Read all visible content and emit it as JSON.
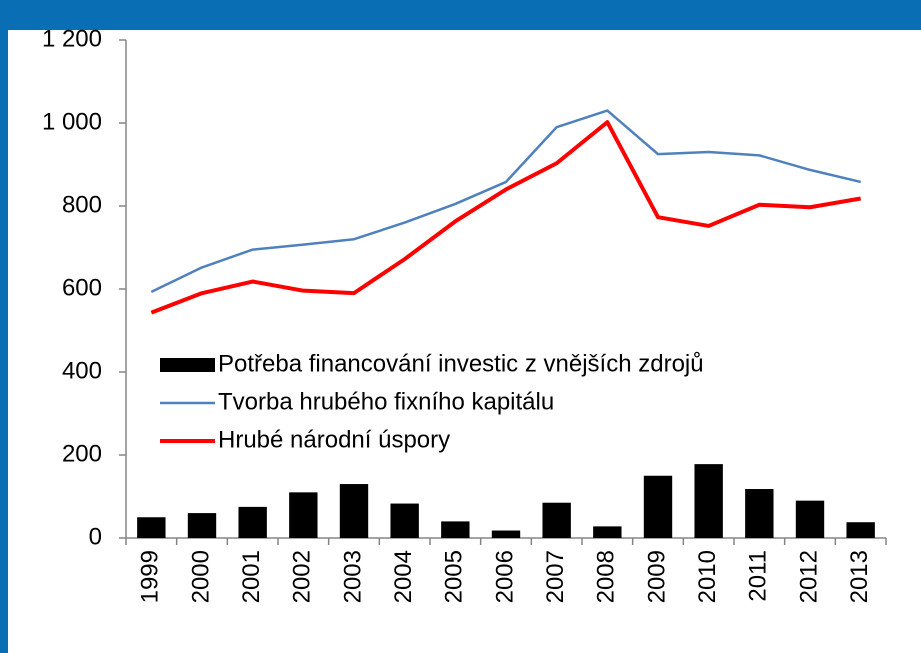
{
  "chart_data": {
    "type": "combo",
    "categories": [
      "1999",
      "2000",
      "2001",
      "2002",
      "2003",
      "2004",
      "2005",
      "2006",
      "2007",
      "2008",
      "2009",
      "2010",
      "2011",
      "2012",
      "2013"
    ],
    "series": [
      {
        "name": "Potřeba financování investic z vnějších zdrojů",
        "type": "bar",
        "color": "#000000",
        "values": [
          50,
          60,
          75,
          110,
          130,
          83,
          40,
          18,
          85,
          28,
          150,
          178,
          118,
          90,
          38
        ]
      },
      {
        "name": "Tvorba hrubého fixního kapitálu",
        "type": "line",
        "color": "#4f81bd",
        "values": [
          593,
          652,
          695,
          707,
          720,
          760,
          805,
          858,
          990,
          1030,
          925,
          930,
          922,
          887,
          858
        ]
      },
      {
        "name": "Hrubé národní úspory",
        "type": "line",
        "color": "#ff0000",
        "values": [
          543,
          590,
          618,
          596,
          590,
          672,
          763,
          840,
          903,
          1002,
          773,
          752,
          803,
          797,
          818
        ]
      }
    ],
    "ylim": [
      0,
      1200
    ],
    "yticks": [
      0,
      200,
      400,
      600,
      800,
      {
        "value": 1000,
        "label": "1 000"
      },
      {
        "value": 1200,
        "label": "1 200"
      }
    ],
    "grid": false,
    "legend": "center"
  }
}
